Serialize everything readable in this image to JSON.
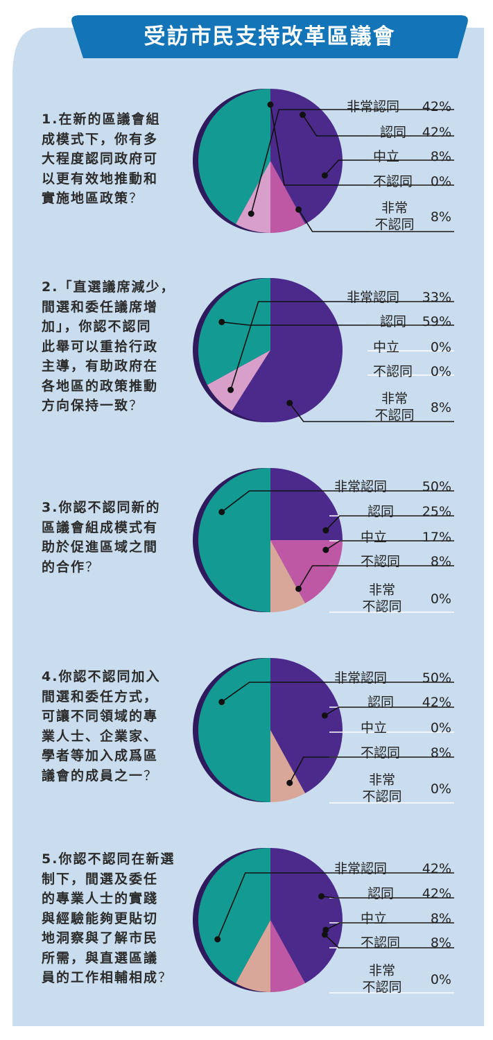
{
  "title": "受訪市民支持改革區議會",
  "colors": {
    "panel": "#c9ddee",
    "banner": "#1474b8",
    "strongly_agree_teal": "#129a93",
    "teal_shadow": "#0e6e6a",
    "agree_purple": "#4b2a8c",
    "purple_shadow": "#2e1a5c",
    "neutral_magenta": "#be58a4",
    "disagree_pink": "#d79fc9",
    "disagree_peach": "#d9a69a"
  },
  "questions": [
    {
      "number": "1.",
      "lines": [
        "在新的區議會組",
        "成模式下，你有多",
        "大程度認同政府可",
        "以更有效地推動和",
        "實施地區政策"
      ],
      "qmark": "？"
    },
    {
      "number": "2.",
      "lines": [
        "「直選議席減少，",
        "間選和委任議席增",
        "加」，你認不認同",
        "此舉可以重拾行政",
        "主導，有助政府在",
        "各地區的政策推動",
        "方向保持一致"
      ],
      "qmark": "？"
    },
    {
      "number": "3.",
      "lines": [
        "你認不認同新的",
        "區議會組成模式有",
        "助於促進區域之間",
        "的合作"
      ],
      "qmark": "？"
    },
    {
      "number": "4.",
      "lines": [
        "你認不認同加入",
        "間選和委任方式，",
        "可讓不同領域的專",
        "業人士、企業家、",
        "學者等加入成爲區",
        "議會的成員之一"
      ],
      "qmark": "？"
    },
    {
      "number": "5.",
      "lines": [
        "你認不認同在新選",
        "制下，間選及委任",
        "的專業人士的實踐",
        "與經驗能夠更貼切",
        "地洞察與了解市民",
        "所需，與直選區議",
        "員的工作相輔相成"
      ],
      "qmark": "？"
    }
  ],
  "chart_data": [
    {
      "type": "pie",
      "categories": [
        "非常認同",
        "認同",
        "中立",
        "不認同",
        "非常不認同"
      ],
      "values": [
        42,
        42,
        8,
        0,
        8
      ],
      "labels": [
        "42%",
        "42%",
        "8%",
        "0%",
        "8%"
      ],
      "colors": [
        "#129a93",
        "#4b2a8c",
        "#be58a4",
        "#d79fc9",
        "#d79fc9"
      ]
    },
    {
      "type": "pie",
      "categories": [
        "非常認同",
        "認同",
        "中立",
        "不認同",
        "非常不認同"
      ],
      "values": [
        33,
        59,
        0,
        0,
        8
      ],
      "labels": [
        "33%",
        "59%",
        "0%",
        "0%",
        "8%"
      ],
      "colors": [
        "#129a93",
        "#4b2a8c",
        "#be58a4",
        "#d79fc9",
        "#d79fc9"
      ]
    },
    {
      "type": "pie",
      "categories": [
        "非常認同",
        "認同",
        "中立",
        "不認同",
        "非常不認同"
      ],
      "values": [
        50,
        25,
        17,
        8,
        0
      ],
      "labels": [
        "50%",
        "25%",
        "17%",
        "8%",
        "0%"
      ],
      "colors": [
        "#129a93",
        "#4b2a8c",
        "#be58a4",
        "#d9a69a",
        "#d79fc9"
      ]
    },
    {
      "type": "pie",
      "categories": [
        "非常認同",
        "認同",
        "中立",
        "不認同",
        "非常不認同"
      ],
      "values": [
        50,
        42,
        0,
        8,
        0
      ],
      "labels": [
        "50%",
        "42%",
        "0%",
        "8%",
        "0%"
      ],
      "colors": [
        "#129a93",
        "#4b2a8c",
        "#be58a4",
        "#d9a69a",
        "#d79fc9"
      ]
    },
    {
      "type": "pie",
      "categories": [
        "非常認同",
        "認同",
        "中立",
        "不認同",
        "非常不認同"
      ],
      "values": [
        42,
        42,
        8,
        8,
        0
      ],
      "labels": [
        "42%",
        "42%",
        "8%",
        "8%",
        "0%"
      ],
      "colors": [
        "#129a93",
        "#4b2a8c",
        "#be58a4",
        "#d9a69a",
        "#d79fc9"
      ]
    }
  ],
  "legend_two_line": {
    "line1": "非常",
    "line2": "不認同"
  }
}
